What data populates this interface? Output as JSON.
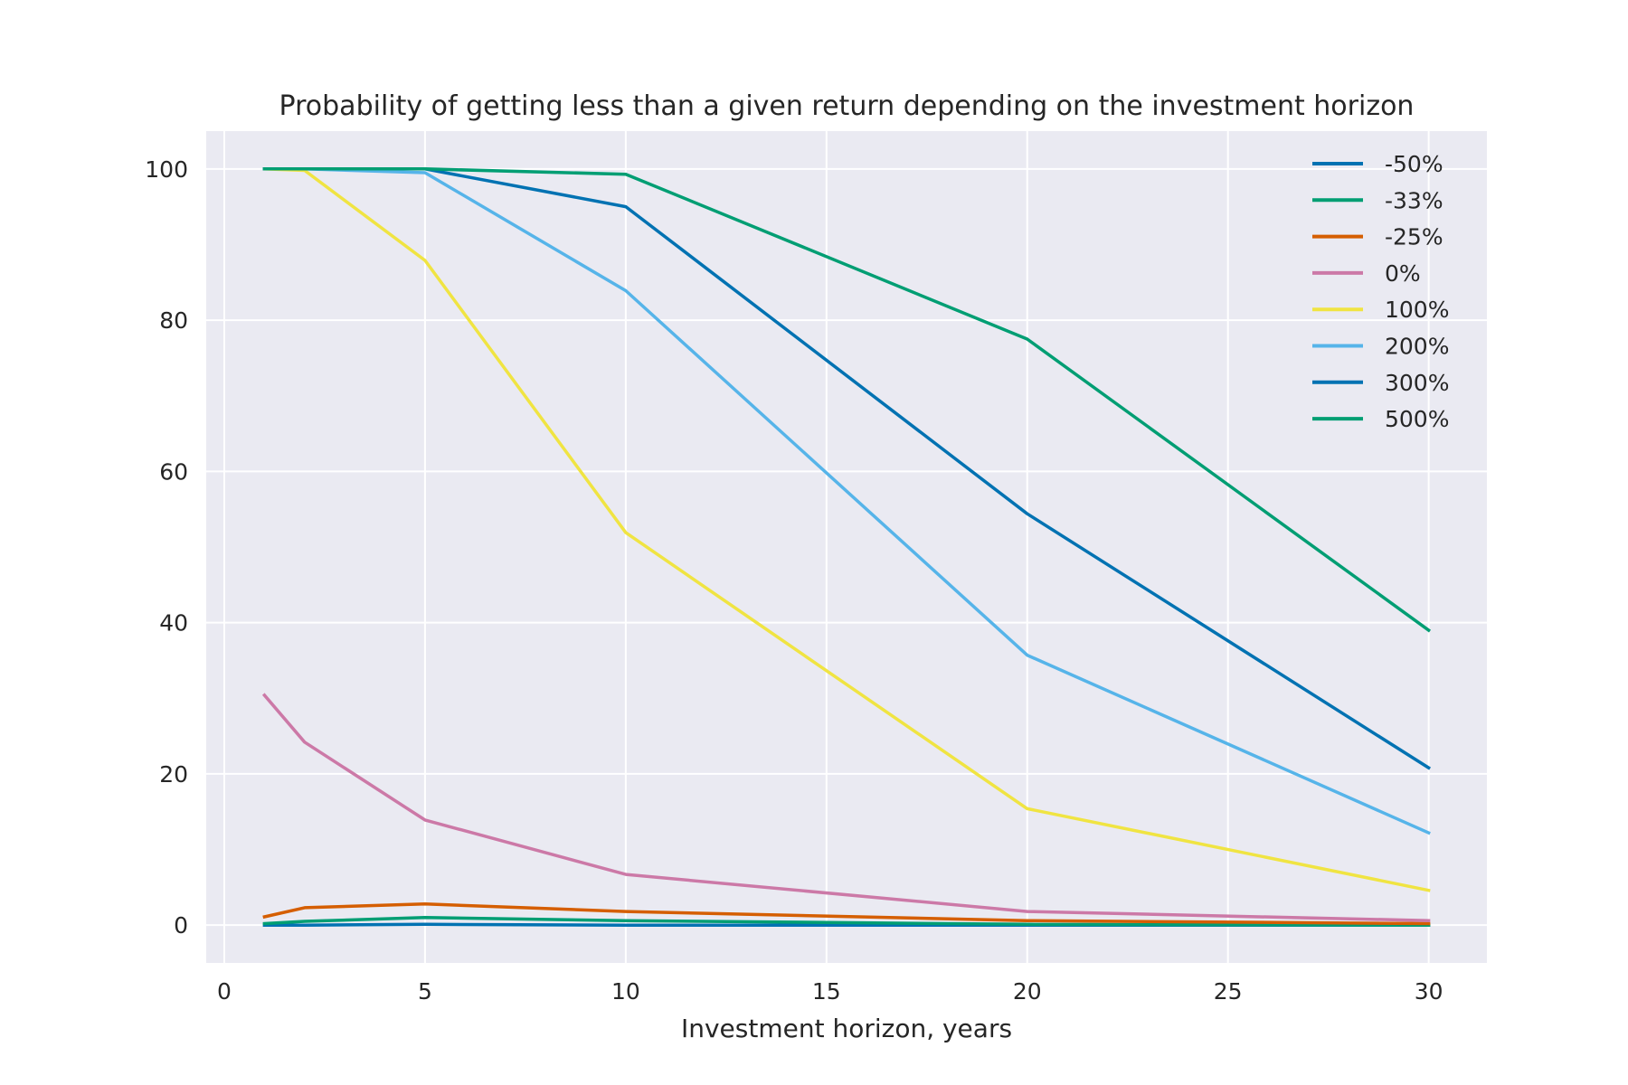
{
  "chart_data": {
    "type": "line",
    "title": "Probability of getting less than a given return depending on the investment horizon",
    "xlabel": "Investment horizon, years",
    "ylabel": "",
    "xlim": [
      -0.45,
      31.45
    ],
    "ylim": [
      -5,
      105
    ],
    "xticks": [
      0,
      5,
      10,
      15,
      20,
      25,
      30
    ],
    "yticks": [
      0,
      20,
      40,
      60,
      80,
      100
    ],
    "grid": true,
    "legend_position": "top-right",
    "x": [
      1,
      2,
      5,
      10,
      20,
      30
    ],
    "series": [
      {
        "name": "-50%",
        "color": "#0072B2",
        "values": [
          0.0,
          0.0,
          0.1,
          0.0,
          0.0,
          0.0
        ]
      },
      {
        "name": "-33%",
        "color": "#009E73",
        "values": [
          0.2,
          0.5,
          1.0,
          0.6,
          0.1,
          0.0
        ]
      },
      {
        "name": "-25%",
        "color": "#D55E00",
        "values": [
          1.1,
          2.3,
          2.8,
          1.8,
          0.6,
          0.2
        ]
      },
      {
        "name": "0%",
        "color": "#CC79A7",
        "values": [
          30.4,
          24.2,
          13.9,
          6.7,
          1.8,
          0.6
        ]
      },
      {
        "name": "100%",
        "color": "#F0E442",
        "values": [
          100.0,
          99.8,
          87.9,
          51.9,
          15.4,
          4.6
        ]
      },
      {
        "name": "200%",
        "color": "#56B4E9",
        "values": [
          100.0,
          100.0,
          99.5,
          83.9,
          35.7,
          12.2
        ]
      },
      {
        "name": "300%",
        "color": "#0072B2",
        "values": [
          100.0,
          100.0,
          100.0,
          95.0,
          54.4,
          20.8
        ]
      },
      {
        "name": "500%",
        "color": "#009E73",
        "values": [
          100.0,
          100.0,
          100.0,
          99.3,
          77.5,
          39.0
        ]
      }
    ],
    "colors": {
      "plot_background": "#EAEAF2",
      "grid": "#FFFFFF",
      "text": "#262626"
    }
  }
}
